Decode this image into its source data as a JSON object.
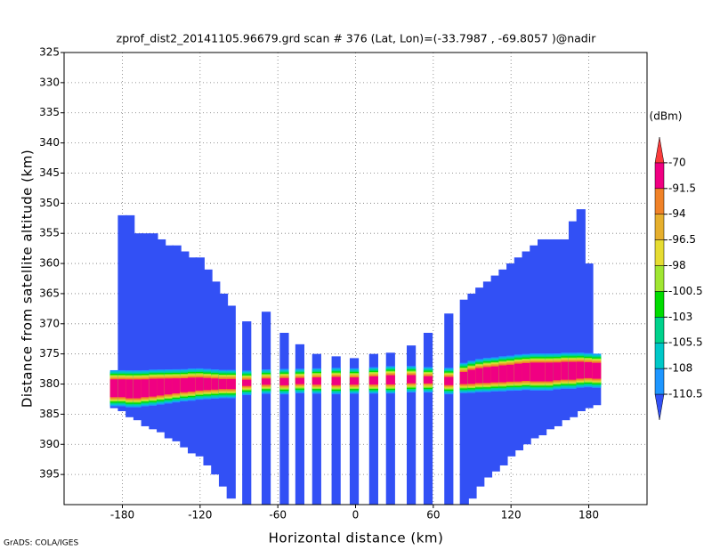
{
  "chart_data": {
    "type": "heatmap",
    "title": "zprof_dist2_20141105.96679.grd  scan # 376  (Lat, Lon)=(-33.7987 , -69.8057 )@nadir",
    "x_label": "Horizontal distance (km)",
    "y_label": "Distance from satellite altitude (km)",
    "footer": "GrADS: COLA/IGES",
    "xlim": [
      -225,
      225
    ],
    "xticks": [
      -180,
      -120,
      -60,
      0,
      60,
      120,
      180
    ],
    "ylim": [
      325,
      400
    ],
    "y_inverted": true,
    "yticks": [
      325,
      330,
      335,
      340,
      345,
      350,
      355,
      360,
      365,
      370,
      375,
      380,
      385,
      390,
      395
    ],
    "grid": true,
    "colorbar": {
      "unit_label": "(dBm)",
      "levels": [
        -110.5,
        -108,
        -105.5,
        -103,
        -100.5,
        -98,
        -96.5,
        -94,
        -91.5,
        -70
      ],
      "colors": [
        "#3250f5",
        "#1e96ff",
        "#00c8c8",
        "#00d28c",
        "#00dc00",
        "#a0e632",
        "#e6dc32",
        "#e6af2d",
        "#f08228",
        "#f00082",
        "#fa3c3c"
      ]
    },
    "floor": -112,
    "column_width": 7,
    "columns": {
      "x": [
        -186,
        -180,
        -174,
        -168,
        -162,
        -156,
        -150,
        -144,
        -138,
        -132,
        -126,
        -120,
        -114,
        -108,
        -102,
        -96,
        -84,
        -69,
        -55,
        -43,
        -30,
        -15,
        -1,
        14,
        27,
        43,
        56,
        72,
        84,
        90,
        96,
        102,
        108,
        114,
        120,
        126,
        132,
        138,
        144,
        150,
        156,
        162,
        168,
        174,
        180,
        186
      ],
      "top": [
        378,
        352,
        352,
        355,
        355,
        355,
        356,
        357,
        357,
        358,
        359,
        359,
        361,
        363,
        365,
        367,
        369.6,
        368,
        371.5,
        373.4,
        375,
        375.4,
        375.7,
        375,
        374.8,
        373.6,
        371.5,
        368.3,
        366,
        365,
        364,
        363,
        362,
        361,
        360,
        359,
        358,
        357,
        356,
        356,
        356,
        356,
        353,
        351,
        360,
        376
      ],
      "bottom": [
        384,
        384.5,
        385.5,
        386,
        387,
        387.5,
        388,
        389,
        389.5,
        390.5,
        391.5,
        392,
        393.5,
        395,
        397,
        399,
        400,
        400,
        400,
        400,
        400,
        400,
        400,
        400,
        400,
        400,
        400,
        400,
        400,
        399,
        397,
        395.5,
        394.5,
        393.5,
        392,
        391,
        390,
        389,
        388.5,
        387.5,
        387,
        386,
        385.5,
        384.5,
        384,
        383.5
      ],
      "band": [
        380.7,
        380.7,
        380.8,
        380.8,
        380.7,
        380.6,
        380.5,
        380.4,
        380.3,
        380.2,
        380.1,
        380,
        380,
        380,
        380,
        380,
        379.8,
        379.6,
        379.6,
        379.5,
        379.5,
        379.5,
        379.5,
        379.4,
        379.3,
        379.2,
        379.3,
        379.5,
        379,
        378.8,
        378.6,
        378.5,
        378.4,
        378.3,
        378.2,
        378.1,
        378,
        378,
        378,
        378,
        377.9,
        377.8,
        377.8,
        377.7,
        377.7,
        377.8
      ],
      "peak": [
        -78,
        -78,
        -77,
        -77,
        -78,
        -78,
        -79,
        -80,
        -81,
        -82,
        -82,
        -83,
        -84,
        -85,
        -86,
        -86,
        -90,
        -90,
        -89,
        -90,
        -89,
        -88,
        -89,
        -88,
        -87,
        -88,
        -89,
        -88,
        -84,
        -82,
        -81,
        -80,
        -80,
        -79,
        -79,
        -78,
        -78,
        -77,
        -77,
        -77,
        -78,
        -78,
        -78,
        -79,
        -80,
        -80
      ]
    }
  }
}
